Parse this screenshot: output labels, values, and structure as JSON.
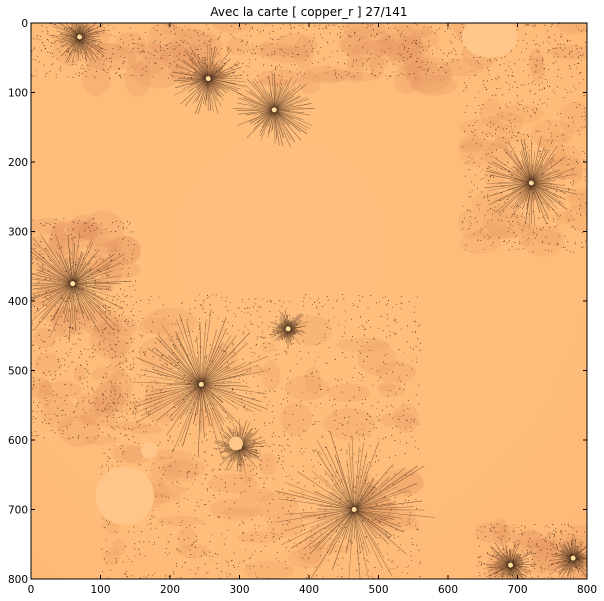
{
  "chart_data": {
    "type": "heatmap",
    "title": "Avec la carte   [ copper_r ]   27/141",
    "xlabel": "",
    "ylabel": "",
    "xlim": [
      0,
      800
    ],
    "ylim": [
      800,
      0
    ],
    "x_ticks": [
      0,
      100,
      200,
      300,
      400,
      500,
      600,
      700,
      800
    ],
    "y_ticks": [
      0,
      100,
      200,
      300,
      400,
      500,
      600,
      700,
      800
    ],
    "colormap": "copper_r",
    "grid": false,
    "content": "julia-set fractal",
    "colors": {
      "background": "#ffbe7c",
      "background_light": "#ffc68a",
      "mid": "#e59560",
      "dark": "#3a2314",
      "axes": "#000000"
    }
  }
}
